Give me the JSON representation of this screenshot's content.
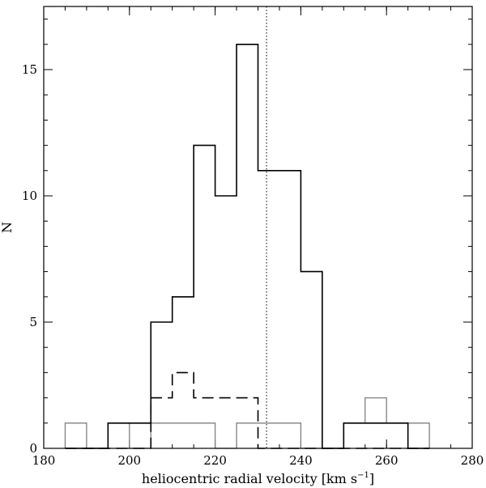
{
  "chart_data": {
    "type": "histogram",
    "xlabel": "heliocentric radial velocity [km s",
    "xlabel_sup": "−1",
    "xlabel_end": "]",
    "ylabel": "N",
    "xlim": [
      180,
      280
    ],
    "ylim": [
      0,
      17.5
    ],
    "x_ticks": [
      "180",
      "200",
      "220",
      "240",
      "260",
      "280"
    ],
    "x_tick_values": [
      180,
      200,
      220,
      240,
      260,
      280
    ],
    "y_ticks": [
      "0",
      "5",
      "10",
      "15"
    ],
    "y_tick_values": [
      0,
      5,
      10,
      15
    ],
    "x_minor_step": 5,
    "y_minor_step": 1,
    "vline": 232,
    "bins": [
      185,
      190,
      195,
      200,
      205,
      210,
      215,
      220,
      225,
      230,
      235,
      240,
      245,
      250,
      255,
      260,
      265,
      270
    ],
    "series": [
      {
        "style": "solid-black",
        "values": [
          0,
          0,
          1,
          1,
          5,
          6,
          12,
          10,
          16,
          11,
          11,
          7,
          0,
          1,
          1,
          1,
          0
        ]
      },
      {
        "style": "dashed-black",
        "values": [
          0,
          0,
          0,
          0,
          2,
          3,
          2,
          2,
          2,
          0,
          0,
          0,
          0,
          0,
          0,
          0,
          0
        ]
      },
      {
        "style": "solid-gray",
        "values": [
          1,
          0,
          1,
          0,
          1,
          1,
          1,
          0,
          1,
          1,
          1,
          0,
          0,
          1,
          2,
          1,
          1
        ]
      }
    ],
    "colors": {
      "black": "#000000",
      "gray": "#808080"
    }
  }
}
